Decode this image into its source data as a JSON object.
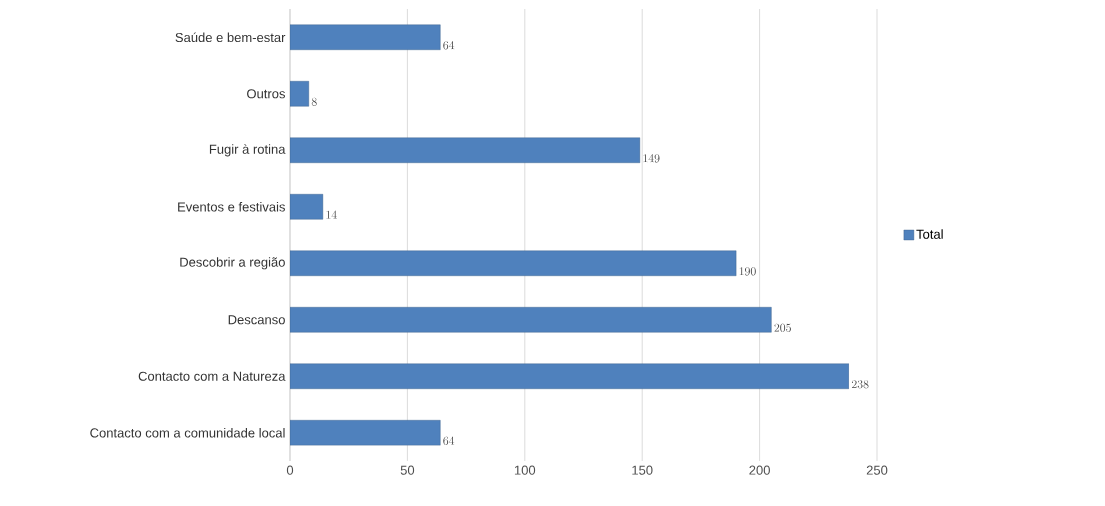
{
  "chart_data": {
    "type": "bar",
    "orientation": "horizontal",
    "categories": [
      "Saúde e bem-estar",
      "Outros",
      "Fugir à rotina",
      "Eventos e festivais",
      "Descobrir a região",
      "Descanso",
      "Contacto com a Natureza",
      "Contacto com a comunidade local"
    ],
    "series": [
      {
        "name": "Total",
        "color": "#4f81bd",
        "values": [
          64,
          8,
          149,
          14,
          190,
          205,
          238,
          64
        ]
      }
    ],
    "xlim": [
      0,
      250
    ],
    "xticks": [
      0,
      50,
      100,
      150,
      200,
      250
    ],
    "grid": "x",
    "legend": "right",
    "data_labels": true
  }
}
